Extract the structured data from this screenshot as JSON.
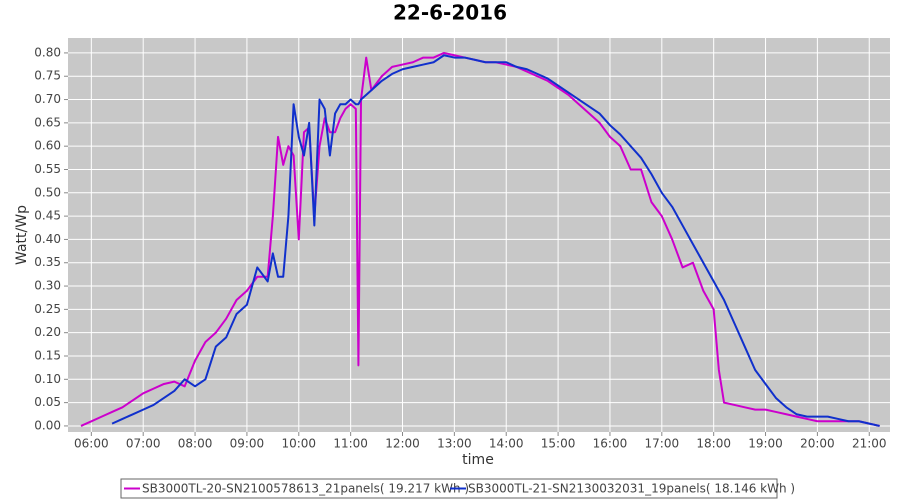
{
  "chart_data": {
    "type": "line",
    "title": "22-6-2016",
    "x_label": "time",
    "y_label": "Watt/Wp",
    "x": [
      5.8,
      6.0,
      6.2,
      6.4,
      6.6,
      6.8,
      7.0,
      7.2,
      7.4,
      7.6,
      7.8,
      8.0,
      8.2,
      8.4,
      8.6,
      8.8,
      9.0,
      9.2,
      9.4,
      9.5,
      9.6,
      9.7,
      9.8,
      9.9,
      10.0,
      10.1,
      10.2,
      10.3,
      10.4,
      10.5,
      10.6,
      10.7,
      10.8,
      10.9,
      11.0,
      11.1,
      11.15,
      11.2,
      11.3,
      11.4,
      11.6,
      11.8,
      12.0,
      12.2,
      12.4,
      12.6,
      12.8,
      13.0,
      13.2,
      13.4,
      13.6,
      13.8,
      14.0,
      14.2,
      14.4,
      14.6,
      14.8,
      15.0,
      15.2,
      15.4,
      15.6,
      15.8,
      16.0,
      16.2,
      16.4,
      16.6,
      16.8,
      17.0,
      17.2,
      17.4,
      17.6,
      17.8,
      18.0,
      18.1,
      18.2,
      18.4,
      18.6,
      18.8,
      19.0,
      19.2,
      19.4,
      19.6,
      19.8,
      20.0,
      20.2,
      20.4,
      20.6,
      20.8,
      21.0,
      21.2
    ],
    "series": [
      {
        "name": "SB3000TL-20-SN2100578613_21panels( 19.217 kWh )",
        "color": "#cc00cc",
        "values": [
          0.0,
          0.01,
          0.02,
          0.03,
          0.04,
          0.055,
          0.07,
          0.08,
          0.09,
          0.095,
          0.085,
          0.14,
          0.18,
          0.2,
          0.23,
          0.27,
          0.29,
          0.32,
          0.32,
          0.45,
          0.62,
          0.56,
          0.6,
          0.58,
          0.4,
          0.63,
          0.64,
          0.45,
          0.6,
          0.66,
          0.63,
          0.63,
          0.66,
          0.68,
          0.69,
          0.68,
          0.13,
          0.7,
          0.79,
          0.72,
          0.75,
          0.77,
          0.775,
          0.78,
          0.79,
          0.79,
          0.8,
          0.795,
          0.79,
          0.785,
          0.78,
          0.78,
          0.775,
          0.77,
          0.76,
          0.75,
          0.74,
          0.725,
          0.71,
          0.69,
          0.67,
          0.65,
          0.62,
          0.6,
          0.55,
          0.55,
          0.48,
          0.45,
          0.4,
          0.34,
          0.35,
          0.29,
          0.25,
          0.12,
          0.05,
          0.045,
          0.04,
          0.035,
          0.035,
          0.03,
          0.025,
          0.02,
          0.015,
          0.01,
          0.01,
          0.01,
          0.01,
          0.01,
          0.005,
          0.0
        ]
      },
      {
        "name": "SB3000TL-21-SN2130032031_19panels( 18.146 kWh )",
        "color": "#1030cc",
        "values": [
          null,
          null,
          null,
          0.005,
          0.015,
          0.025,
          0.035,
          0.045,
          0.06,
          0.075,
          0.1,
          0.085,
          0.1,
          0.17,
          0.19,
          0.24,
          0.26,
          0.34,
          0.31,
          0.37,
          0.32,
          0.32,
          0.45,
          0.69,
          0.62,
          0.58,
          0.65,
          0.43,
          0.7,
          0.68,
          0.58,
          0.67,
          0.69,
          0.69,
          0.7,
          0.69,
          0.69,
          0.7,
          0.71,
          0.72,
          0.74,
          0.755,
          0.765,
          0.77,
          0.775,
          0.78,
          0.795,
          0.79,
          0.79,
          0.785,
          0.78,
          0.78,
          0.78,
          0.77,
          0.765,
          0.755,
          0.745,
          0.73,
          0.715,
          0.7,
          0.685,
          0.67,
          0.645,
          0.625,
          0.6,
          0.575,
          0.54,
          0.5,
          0.47,
          0.43,
          0.39,
          0.35,
          0.31,
          0.29,
          0.27,
          0.22,
          0.17,
          0.12,
          0.09,
          0.06,
          0.04,
          0.025,
          0.02,
          0.02,
          0.02,
          0.015,
          0.01,
          0.01,
          0.005,
          0.0
        ]
      }
    ],
    "xlim": [
      5.55,
      21.4
    ],
    "xticks": [
      {
        "value": 6,
        "label": "06:00"
      },
      {
        "value": 7,
        "label": "07:00"
      },
      {
        "value": 8,
        "label": "08:00"
      },
      {
        "value": 9,
        "label": "09:00"
      },
      {
        "value": 10,
        "label": "10:00"
      },
      {
        "value": 11,
        "label": "11:00"
      },
      {
        "value": 12,
        "label": "12:00"
      },
      {
        "value": 13,
        "label": "13:00"
      },
      {
        "value": 14,
        "label": "14:00"
      },
      {
        "value": 15,
        "label": "15:00"
      },
      {
        "value": 16,
        "label": "16:00"
      },
      {
        "value": 17,
        "label": "17:00"
      },
      {
        "value": 18,
        "label": "18:00"
      },
      {
        "value": 19,
        "label": "19:00"
      },
      {
        "value": 20,
        "label": "20:00"
      },
      {
        "value": 21,
        "label": "21:00"
      }
    ],
    "ylim": [
      -0.013,
      0.832
    ],
    "yticks": [
      {
        "value": 0,
        "label": "0.00"
      },
      0.05,
      {
        "value": 0.1,
        "label": "0.10"
      },
      0.15,
      {
        "value": 0.2,
        "label": "0.20"
      },
      0.25,
      {
        "value": 0.3,
        "label": "0.30"
      },
      0.35,
      {
        "value": 0.4,
        "label": "0.40"
      },
      0.45,
      {
        "value": 0.5,
        "label": "0.50"
      },
      0.55,
      {
        "value": 0.6,
        "label": "0.60"
      },
      0.65,
      {
        "value": 0.7,
        "label": "0.70"
      },
      0.75,
      {
        "value": 0.8,
        "label": "0.80"
      }
    ],
    "grid": true,
    "legend": "bottom"
  }
}
